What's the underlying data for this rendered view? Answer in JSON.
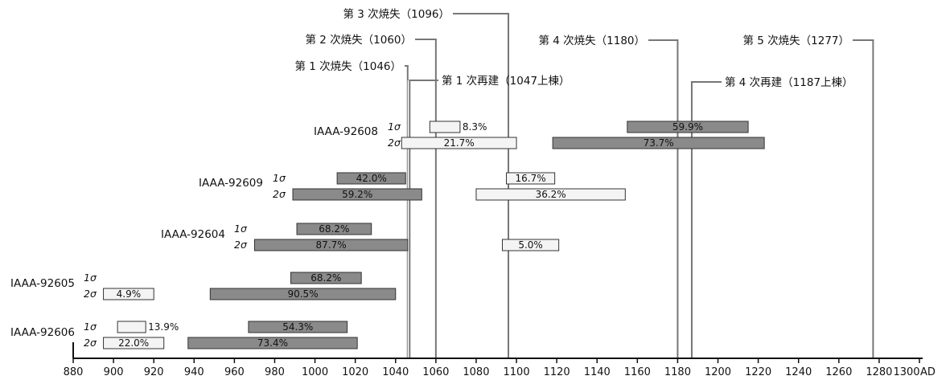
{
  "chart_data": {
    "type": "bar",
    "x_unit_label": "AD",
    "xlim": [
      880,
      1300
    ],
    "x_ticks": [
      880,
      900,
      920,
      940,
      960,
      980,
      1000,
      1020,
      1040,
      1060,
      1080,
      1100,
      1120,
      1140,
      1160,
      1180,
      1200,
      1220,
      1240,
      1260,
      1280,
      1300
    ],
    "colors": {
      "dark_bar": "#8a8a8a",
      "light_bar": "#f4f4f4",
      "line": "#777777",
      "axis": "#111111"
    },
    "events": [
      {
        "label": "第 1 次焼失（1046）",
        "year": 1046,
        "side": "left"
      },
      {
        "label": "第 2 次焼失（1060）",
        "year": 1060,
        "side": "left"
      },
      {
        "label": "第 3 次焼失（1096）",
        "year": 1096,
        "side": "left"
      },
      {
        "label": "第 1 次再建（1047上棟）",
        "year": 1047,
        "side": "right"
      },
      {
        "label": "第 4 次焼失（1180）",
        "year": 1180,
        "side": "left"
      },
      {
        "label": "第 4 次再建（1187上棟）",
        "year": 1187,
        "side": "right"
      },
      {
        "label": "第 5 次焼失（1277）",
        "year": 1277,
        "side": "left"
      }
    ],
    "samples": [
      {
        "name": "IAAA-92608",
        "rows": [
          {
            "sigma": "1σ",
            "ranges": [
              {
                "start": 1057,
                "end": 1072,
                "percent": "8.3%",
                "shade": "light",
                "label_pos": "outside"
              },
              {
                "start": 1155,
                "end": 1215,
                "percent": "59.9%",
                "shade": "dark"
              }
            ]
          },
          {
            "sigma": "2σ",
            "ranges": [
              {
                "start": 1043,
                "end": 1100,
                "percent": "21.7%",
                "shade": "light"
              },
              {
                "start": 1118,
                "end": 1223,
                "percent": "73.7%",
                "shade": "dark"
              }
            ]
          }
        ]
      },
      {
        "name": "IAAA-92609",
        "rows": [
          {
            "sigma": "1σ",
            "ranges": [
              {
                "start": 1011,
                "end": 1045,
                "percent": "42.0%",
                "shade": "dark"
              },
              {
                "start": 1095,
                "end": 1119,
                "percent": "16.7%",
                "shade": "light"
              }
            ]
          },
          {
            "sigma": "2σ",
            "ranges": [
              {
                "start": 989,
                "end": 1053,
                "percent": "59.2%",
                "shade": "dark"
              },
              {
                "start": 1080,
                "end": 1154,
                "percent": "36.2%",
                "shade": "light"
              }
            ]
          }
        ]
      },
      {
        "name": "IAAA-92604",
        "rows": [
          {
            "sigma": "1σ",
            "ranges": [
              {
                "start": 991,
                "end": 1028,
                "percent": "68.2%",
                "shade": "dark"
              }
            ]
          },
          {
            "sigma": "2σ",
            "ranges": [
              {
                "start": 970,
                "end": 1046,
                "percent": "87.7%",
                "shade": "dark"
              },
              {
                "start": 1093,
                "end": 1121,
                "percent": "5.0%",
                "shade": "light"
              }
            ]
          }
        ]
      },
      {
        "name": "IAAA-92605",
        "rows": [
          {
            "sigma": "1σ",
            "ranges": [
              {
                "start": 988,
                "end": 1023,
                "percent": "68.2%",
                "shade": "dark"
              }
            ]
          },
          {
            "sigma": "2σ",
            "ranges": [
              {
                "start": 895,
                "end": 920,
                "percent": "4.9%",
                "shade": "light"
              },
              {
                "start": 948,
                "end": 1040,
                "percent": "90.5%",
                "shade": "dark"
              }
            ]
          }
        ]
      },
      {
        "name": "IAAA-92606",
        "rows": [
          {
            "sigma": "1σ",
            "ranges": [
              {
                "start": 902,
                "end": 916,
                "percent": "13.9%",
                "shade": "light",
                "label_pos": "outside"
              },
              {
                "start": 967,
                "end": 1016,
                "percent": "54.3%",
                "shade": "dark"
              }
            ]
          },
          {
            "sigma": "2σ",
            "ranges": [
              {
                "start": 895,
                "end": 925,
                "percent": "22.0%",
                "shade": "light"
              },
              {
                "start": 937,
                "end": 1021,
                "percent": "73.4%",
                "shade": "dark"
              }
            ]
          }
        ]
      }
    ]
  }
}
